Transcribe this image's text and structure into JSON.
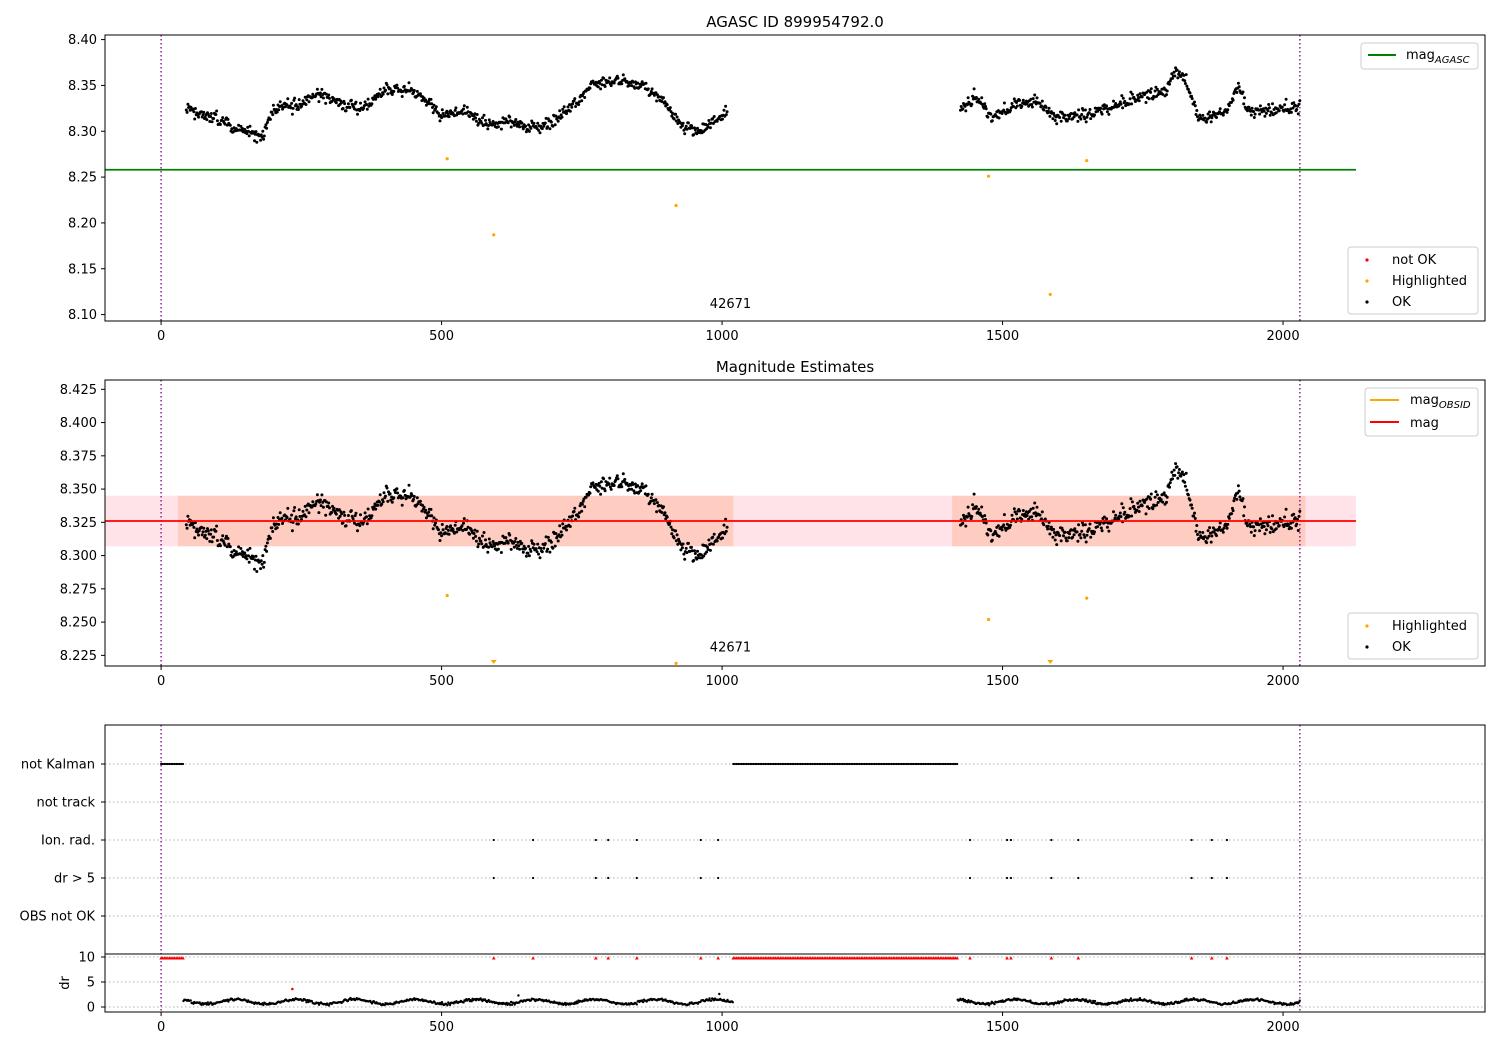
{
  "chart_data": [
    {
      "type": "scatter",
      "title": "AGASC ID 899954792.0",
      "xlim": [
        -100,
        2360
      ],
      "ylim": [
        8.093,
        8.405
      ],
      "xticks": [
        0,
        500,
        1000,
        1500,
        2000
      ],
      "yticks": [
        8.1,
        8.15,
        8.2,
        8.25,
        8.3,
        8.35,
        8.4
      ],
      "ytick_labels": [
        "8.10",
        "8.15",
        "8.20",
        "8.25",
        "8.30",
        "8.35",
        "8.40"
      ],
      "vlines": [
        0,
        2030
      ],
      "hline": {
        "label_main": "mag",
        "label_sub": "AGASC",
        "y": 8.258,
        "x": [
          -100,
          2130
        ],
        "color": "#008000"
      },
      "annotation": {
        "text": "42671",
        "x": 1015,
        "y": 8.107
      },
      "legend_lines_position": "upper right",
      "legend_points_position": "lower right",
      "legend_points": [
        {
          "label": "not OK",
          "color": "#ff0000"
        },
        {
          "label": "Highlighted",
          "color": "#ffa500"
        },
        {
          "label": "OK",
          "color": "#000000"
        }
      ],
      "highlighted": [
        [
          510,
          8.27
        ],
        [
          593,
          8.187
        ],
        [
          918,
          8.219
        ],
        [
          1475,
          8.251
        ],
        [
          1585,
          8.122
        ],
        [
          1650,
          8.268
        ]
      ]
    },
    {
      "type": "scatter",
      "title": "Magnitude Estimates",
      "xlim": [
        -100,
        2360
      ],
      "ylim": [
        8.217,
        8.432
      ],
      "xticks": [
        0,
        500,
        1000,
        1500,
        2000
      ],
      "yticks": [
        8.225,
        8.25,
        8.275,
        8.3,
        8.325,
        8.35,
        8.375,
        8.4,
        8.425
      ],
      "ytick_labels": [
        "8.225",
        "8.250",
        "8.275",
        "8.300",
        "8.325",
        "8.350",
        "8.375",
        "8.400",
        "8.425"
      ],
      "vlines": [
        0,
        2030
      ],
      "mag_line": {
        "label": "mag",
        "y": 8.326,
        "color": "#ff0000",
        "x": [
          -100,
          2130
        ]
      },
      "mag_obsid": {
        "label_main": "mag",
        "label_sub": "OBSID",
        "color": "#ffa500"
      },
      "band": {
        "y": [
          8.307,
          8.345
        ],
        "x": [
          -100,
          2130
        ]
      },
      "annotation": {
        "text": "42671",
        "x": 1015,
        "y": 8.228
      },
      "legend_lines_position": "upper right",
      "legend_points_position": "lower right",
      "legend_points": [
        {
          "label": "Highlighted",
          "color": "#ffa500"
        },
        {
          "label": "OK",
          "color": "#000000"
        }
      ],
      "highlighted": [
        [
          510,
          8.27
        ],
        [
          1475,
          8.252
        ],
        [
          1650,
          8.268
        ],
        [
          918,
          8.219
        ]
      ],
      "highlighted_below": [
        593,
        1585
      ]
    },
    {
      "type": "scatter",
      "xlim": [
        -100,
        2360
      ],
      "xticks": [
        0,
        500,
        1000,
        1500,
        2000
      ],
      "vlines": [
        0,
        2030
      ],
      "flag_rows": [
        "not Kalman",
        "not track",
        "Ion. rad.",
        "dr > 5",
        "OBS not OK"
      ],
      "not_kalman_ranges": [
        [
          0,
          40
        ],
        [
          1020,
          1420
        ]
      ],
      "ion_rad_x": [
        593,
        663,
        775,
        797,
        848,
        962,
        993,
        1442,
        1508,
        1515,
        1587,
        1635,
        1837,
        1873,
        1900
      ],
      "dr_gt5_x": [
        593,
        663,
        775,
        797,
        848,
        962,
        993,
        1442,
        1508,
        1515,
        1587,
        1635,
        1837,
        1873,
        1900
      ],
      "ylabel": "dr",
      "dr_yticks": [
        0,
        5,
        10
      ],
      "dr_ylim": [
        -1,
        10.6
      ],
      "dr_segments": [
        [
          40,
          1020
        ],
        [
          1420,
          2030
        ]
      ],
      "dr_outlier": [
        234,
        3.6
      ],
      "dr_spike": [
        [
          637,
          2.3
        ],
        [
          995,
          2.6
        ]
      ]
    }
  ]
}
